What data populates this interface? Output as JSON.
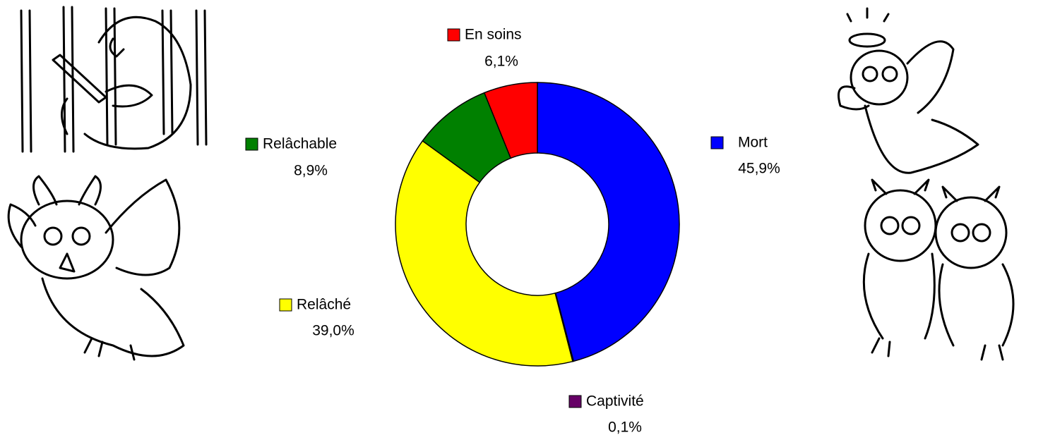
{
  "chart_data": {
    "type": "donut",
    "categories": [
      "Mort",
      "Captivité",
      "Relâché",
      "Relâchable",
      "En soins"
    ],
    "values": [
      45.9,
      0.1,
      39.0,
      8.9,
      6.1
    ],
    "value_labels": [
      "45,9%",
      "0,1%",
      "39,0%",
      "8,9%",
      "6,1%"
    ],
    "colors": [
      "#0000ff",
      "#660066",
      "#ffff00",
      "#008000",
      "#ff0000"
    ]
  }
}
